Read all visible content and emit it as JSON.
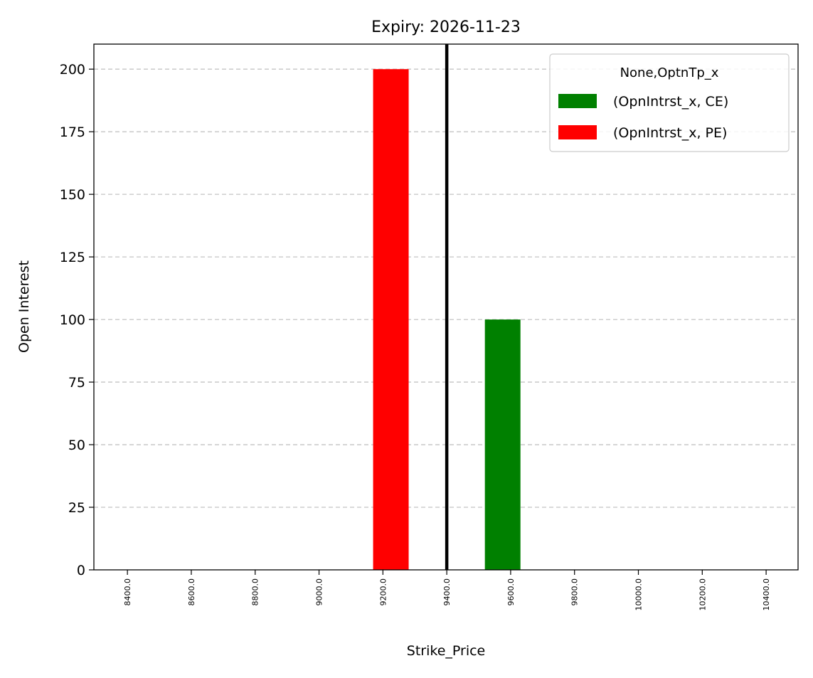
{
  "chart_data": {
    "type": "bar",
    "title": "Expiry: 2026-11-23",
    "xlabel": "Strike_Price",
    "ylabel": "Open Interest",
    "categories": [
      "8400.0",
      "8600.0",
      "8800.0",
      "9000.0",
      "9200.0",
      "9400.0",
      "9600.0",
      "9800.0",
      "10000.0",
      "10200.0",
      "10400.0"
    ],
    "ylim": [
      0,
      210
    ],
    "yticks": [
      0,
      25,
      50,
      75,
      100,
      125,
      150,
      175,
      200
    ],
    "grid": "y-dashed",
    "legend": {
      "title": "None,OptnTp_x",
      "placement": "top-right"
    },
    "series": [
      {
        "name": "(OpnIntrst_x, CE)",
        "color": "#008000",
        "points": [
          {
            "x": 9575,
            "y": 100
          }
        ]
      },
      {
        "name": "(OpnIntrst_x, PE)",
        "color": "#ff0000",
        "points": [
          {
            "x": 9225,
            "y": 200
          }
        ]
      }
    ],
    "reference_line": {
      "x": 9400,
      "color": "#000000"
    }
  }
}
